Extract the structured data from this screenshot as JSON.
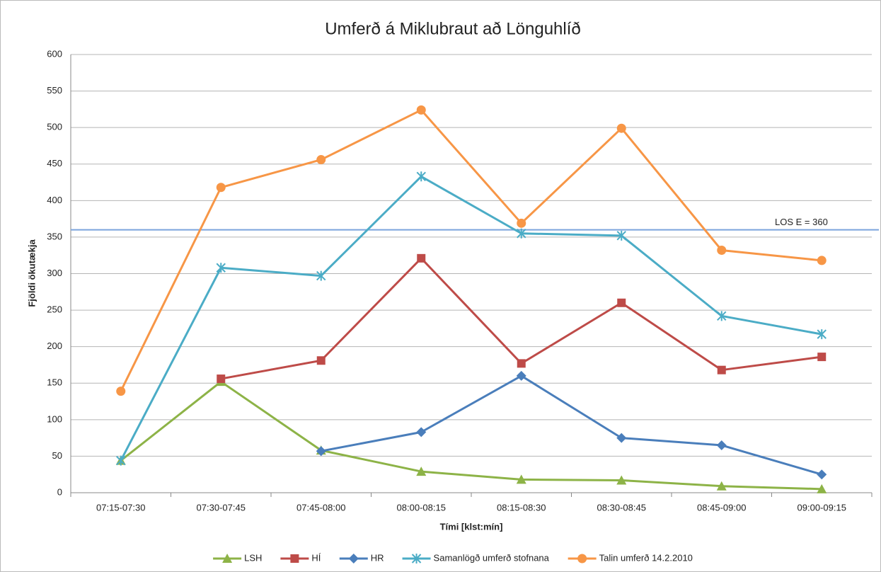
{
  "chart_data": {
    "type": "line",
    "title": "Umferð á Miklubraut að Lönguhlíð",
    "xlabel": "Tími [klst:mín]",
    "ylabel": "Fjöldi ökutækja",
    "categories": [
      "07:15-07:30",
      "07:30-07:45",
      "07:45-08:00",
      "08:00-08:15",
      "08:15-08:30",
      "08:30-08:45",
      "08:45-09:00",
      "09:00-09:15"
    ],
    "series": [
      {
        "name": "LSH",
        "color": "#8db347",
        "marker": "triangle",
        "values": [
          44,
          152,
          58,
          29,
          18,
          17,
          9,
          5
        ]
      },
      {
        "name": "HÍ",
        "color": "#be4b48",
        "marker": "square",
        "values": [
          null,
          156,
          181,
          321,
          177,
          260,
          168,
          186
        ]
      },
      {
        "name": "HR",
        "color": "#4a7ebb",
        "marker": "diamond",
        "values": [
          null,
          null,
          57,
          83,
          160,
          75,
          65,
          25
        ]
      },
      {
        "name": "Samanlögð umferð stofnana",
        "color": "#4bacc6",
        "marker": "star",
        "values": [
          44,
          308,
          297,
          433,
          355,
          352,
          242,
          217
        ]
      },
      {
        "name": "Talin umferð 14.2.2010",
        "color": "#f79646",
        "marker": "circle",
        "values": [
          139,
          418,
          456,
          524,
          369,
          499,
          332,
          318
        ]
      }
    ],
    "reference_line": {
      "value": 360,
      "label": "LOS E = 360",
      "color": "#7ba4dc"
    },
    "ylim": [
      0,
      600
    ],
    "yticks": [
      0,
      50,
      100,
      150,
      200,
      250,
      300,
      350,
      400,
      450,
      500,
      550,
      600
    ],
    "grid": true,
    "legend": "bottom"
  }
}
